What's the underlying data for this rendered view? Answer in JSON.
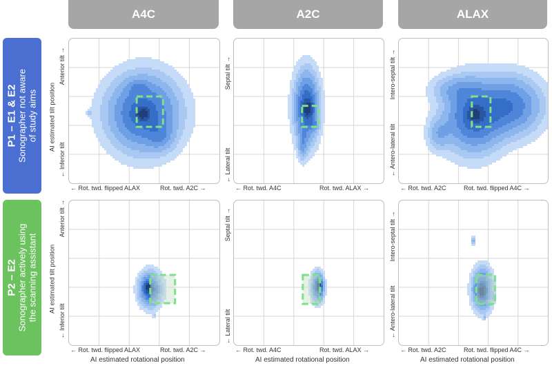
{
  "columns": [
    "A4C",
    "A2C",
    "ALAX"
  ],
  "rows": [
    {
      "title": "P1 – E1 & E2",
      "subtitle_line1": "Sonographer not aware",
      "subtitle_line2": "of study aims",
      "color": "#4a6fd0"
    },
    {
      "title": "P2 – E2",
      "subtitle_line1": "Sonographer actively using",
      "subtitle_line2": "the scanning assistant",
      "color": "#6cc25f"
    }
  ],
  "labels": {
    "A4C": {
      "top": "Anterior tilt →",
      "bottom": "← Inferior tilt",
      "left": "← Rot. twd. flipped ALAX",
      "right": "Rot. twd. A2C →"
    },
    "A2C": {
      "top": "Septal tilt →",
      "bottom": "← Lateral tilt",
      "left": "← Rot. twd. A4C",
      "right": "Rot. twd. ALAX →"
    },
    "ALAX": {
      "top": "Intero-septal tilt →",
      "bottom": "← Antero-lateral tilt",
      "left": "← Rot. twd. A2C",
      "right": "Rot. twd. flipped A4C →"
    }
  },
  "y_axis_title": "AI estimated tilt position",
  "x_axis_title": "AI estimated rotational position",
  "colors": {
    "density": "#1f6fc9",
    "target": "#7de08a",
    "grid": "#d6d6d6"
  },
  "chart_data": [
    {
      "type": "kde_density",
      "row": "P1 – E1 & E2",
      "view": "A4C",
      "x_range": [
        -1,
        1
      ],
      "y_range": [
        -1,
        1
      ],
      "grid": true,
      "target_box": {
        "x": [
          -0.1,
          0.25
        ],
        "y": [
          -0.22,
          0.2
        ]
      },
      "density_blobs": [
        {
          "cx": -0.01,
          "cy": -0.03,
          "sx": 0.29,
          "sy": 0.32,
          "weight": 1.0
        },
        {
          "cx": 0.22,
          "cy": -0.35,
          "sx": 0.11,
          "sy": 0.13,
          "weight": 0.3
        },
        {
          "cx": -0.08,
          "cy": 0.33,
          "sx": 0.09,
          "sy": 0.07,
          "weight": 0.25
        },
        {
          "cx": -0.72,
          "cy": -0.03,
          "sx": 0.03,
          "sy": 0.03,
          "weight": 0.15
        },
        {
          "cx": -0.02,
          "cy": -0.04,
          "sx": 0.06,
          "sy": 0.06,
          "weight": 0.6
        }
      ]
    },
    {
      "type": "kde_density",
      "row": "P1 – E1 & E2",
      "view": "A2C",
      "x_range": [
        -1,
        1
      ],
      "y_range": [
        -1,
        1
      ],
      "grid": true,
      "target_box": {
        "x": [
          -0.09,
          0.13
        ],
        "y": [
          -0.22,
          0.07
        ]
      },
      "density_blobs": [
        {
          "cx": -0.03,
          "cy": 0.05,
          "sx": 0.1,
          "sy": 0.3,
          "weight": 1.0
        },
        {
          "cx": -0.08,
          "cy": -0.47,
          "sx": 0.04,
          "sy": 0.13,
          "weight": 0.35
        },
        {
          "cx": 0.0,
          "cy": 0.03,
          "sx": 0.045,
          "sy": 0.08,
          "weight": 0.5
        },
        {
          "cx": 0.07,
          "cy": -0.18,
          "sx": 0.04,
          "sy": 0.05,
          "weight": 0.25
        }
      ]
    },
    {
      "type": "kde_density",
      "row": "P1 – E1 & E2",
      "view": "ALAX",
      "x_range": [
        -1,
        1
      ],
      "y_range": [
        -1,
        1
      ],
      "grid": true,
      "target_box": {
        "x": [
          -0.02,
          0.23
        ],
        "y": [
          -0.22,
          0.2
        ]
      },
      "density_blobs": [
        {
          "cx": 0.0,
          "cy": -0.08,
          "sx": 0.24,
          "sy": 0.3,
          "weight": 1.0
        },
        {
          "cx": 0.5,
          "cy": 0.07,
          "sx": 0.26,
          "sy": 0.25,
          "weight": 0.8
        },
        {
          "cx": -0.46,
          "cy": -0.32,
          "sx": 0.1,
          "sy": 0.14,
          "weight": 0.35
        },
        {
          "cx": -0.25,
          "cy": 0.3,
          "sx": 0.2,
          "sy": 0.12,
          "weight": 0.3
        },
        {
          "cx": 0.02,
          "cy": -0.05,
          "sx": 0.06,
          "sy": 0.07,
          "weight": 0.55
        }
      ]
    },
    {
      "type": "kde_density",
      "row": "P2 – E2",
      "view": "A4C",
      "x_range": [
        -1,
        1
      ],
      "y_range": [
        -1,
        1
      ],
      "grid": true,
      "target_box": {
        "x": [
          0.08,
          0.41
        ],
        "y": [
          -0.03,
          -0.42
        ]
      },
      "density_blobs": [
        {
          "cx": 0.08,
          "cy": -0.23,
          "sx": 0.09,
          "sy": 0.14,
          "weight": 1.0
        },
        {
          "cx": 0.05,
          "cy": -0.2,
          "sx": 0.04,
          "sy": 0.06,
          "weight": 0.6
        },
        {
          "cx": 0.13,
          "cy": -0.6,
          "sx": 0.01,
          "sy": 0.02,
          "weight": 0.3
        }
      ]
    },
    {
      "type": "kde_density",
      "row": "P2 – E2",
      "view": "A2C",
      "x_range": [
        -1,
        1
      ],
      "y_range": [
        -1,
        1
      ],
      "grid": true,
      "target_box": {
        "x": [
          -0.08,
          0.15
        ],
        "y": [
          -0.03,
          -0.43
        ]
      },
      "density_blobs": [
        {
          "cx": 0.12,
          "cy": -0.2,
          "sx": 0.05,
          "sy": 0.12,
          "weight": 1.0
        },
        {
          "cx": 0.14,
          "cy": -0.18,
          "sx": 0.025,
          "sy": 0.05,
          "weight": 0.6
        }
      ]
    },
    {
      "type": "kde_density",
      "row": "P2 – E2",
      "view": "ALAX",
      "x_range": [
        -1,
        1
      ],
      "y_range": [
        -1,
        1
      ],
      "grid": true,
      "target_box": {
        "x": [
          0.04,
          0.29
        ],
        "y": [
          -0.03,
          -0.43
        ]
      },
      "density_blobs": [
        {
          "cx": 0.12,
          "cy": -0.23,
          "sx": 0.08,
          "sy": 0.17,
          "weight": 1.0
        },
        {
          "cx": 0.11,
          "cy": -0.26,
          "sx": 0.035,
          "sy": 0.07,
          "weight": 0.6
        },
        {
          "cx": 0.0,
          "cy": 0.45,
          "sx": 0.02,
          "sy": 0.04,
          "weight": 0.35
        },
        {
          "cx": 0.15,
          "cy": -0.62,
          "sx": 0.01,
          "sy": 0.02,
          "weight": 0.25
        },
        {
          "cx": 0.27,
          "cy": -0.33,
          "sx": 0.015,
          "sy": 0.04,
          "weight": 0.2
        }
      ]
    }
  ]
}
